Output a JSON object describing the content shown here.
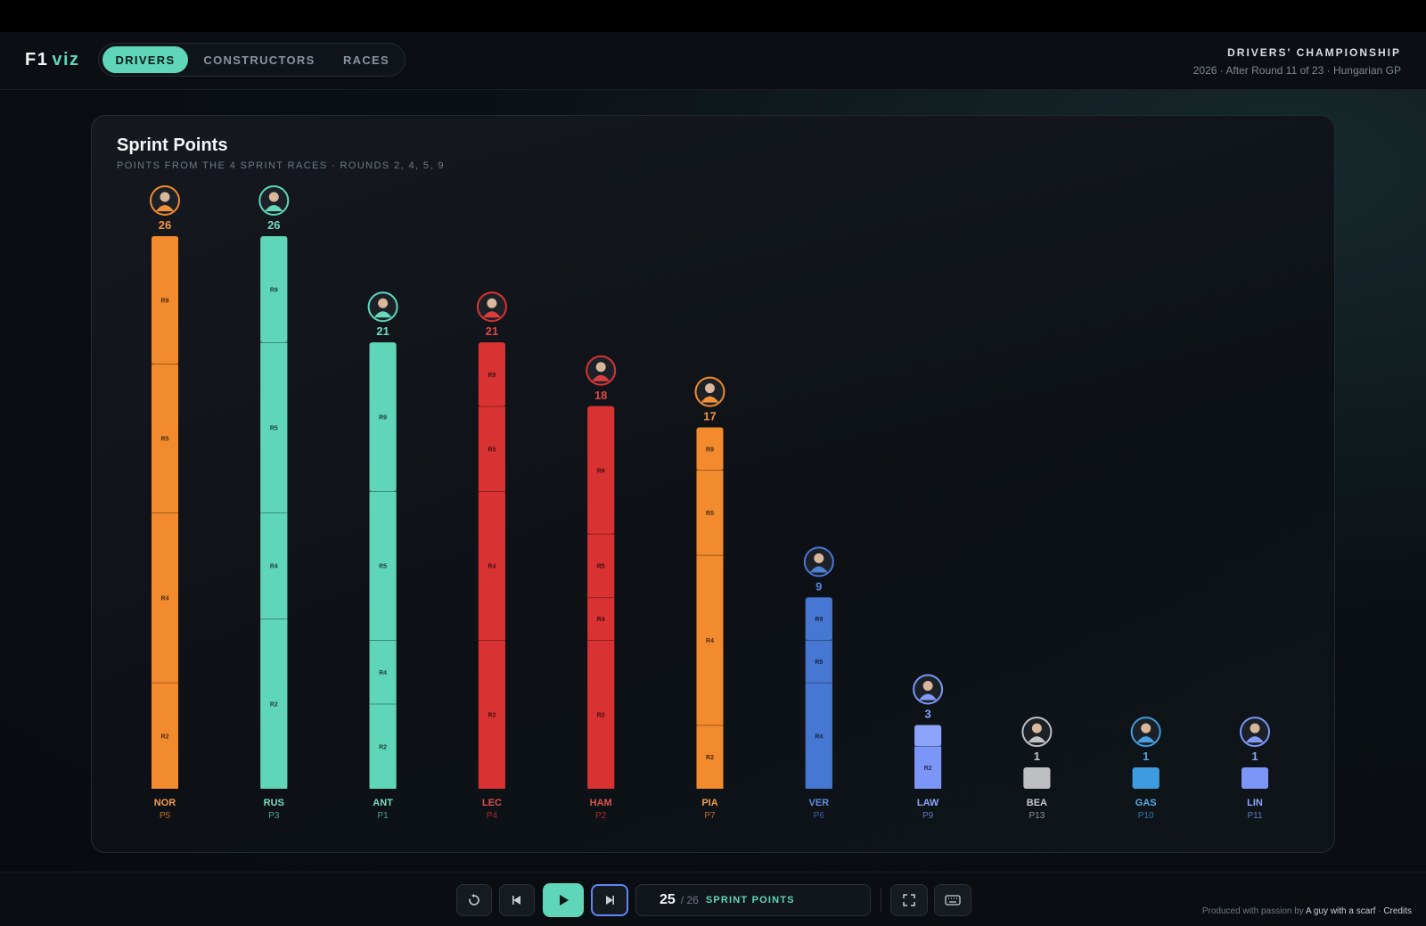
{
  "app": {
    "logo_main": "F1",
    "logo_accent": "viz"
  },
  "nav": {
    "tabs": [
      {
        "label": "DRIVERS",
        "active": true
      },
      {
        "label": "CONSTRUCTORS",
        "active": false
      },
      {
        "label": "RACES",
        "active": false
      }
    ]
  },
  "championship": {
    "title": "DRIVERS' CHAMPIONSHIP",
    "subtitle": "2026 · After Round 11 of 23 · Hungarian GP"
  },
  "chart_data": {
    "type": "bar",
    "stacked": true,
    "title": "Sprint Points",
    "subtitle": "POINTS FROM THE 4 SPRINT RACES · ROUNDS 2, 4, 5, 9",
    "ylim": [
      0,
      26
    ],
    "grid": false,
    "drivers": [
      {
        "code": "NOR",
        "pos": "P5",
        "total": 26,
        "color": "#f28a2e",
        "segments": [
          {
            "round": "R2",
            "points": 5
          },
          {
            "round": "R4",
            "points": 8
          },
          {
            "round": "R5",
            "points": 7
          },
          {
            "round": "R9",
            "points": 6
          }
        ]
      },
      {
        "code": "RUS",
        "pos": "P3",
        "total": 26,
        "color": "#5fd6b8",
        "segments": [
          {
            "round": "R2",
            "points": 8
          },
          {
            "round": "R4",
            "points": 5
          },
          {
            "round": "R5",
            "points": 8
          },
          {
            "round": "R9",
            "points": 5
          }
        ]
      },
      {
        "code": "ANT",
        "pos": "P1",
        "total": 21,
        "color": "#5fd6b8",
        "segments": [
          {
            "round": "R2",
            "points": 4
          },
          {
            "round": "R4",
            "points": 3
          },
          {
            "round": "R5",
            "points": 7
          },
          {
            "round": "R9",
            "points": 7
          }
        ]
      },
      {
        "code": "LEC",
        "pos": "P4",
        "total": 21,
        "color": "#d93232",
        "segments": [
          {
            "round": "R2",
            "points": 7
          },
          {
            "round": "R4",
            "points": 7
          },
          {
            "round": "R5",
            "points": 4
          },
          {
            "round": "R9",
            "points": 3
          }
        ]
      },
      {
        "code": "HAM",
        "pos": "P2",
        "total": 18,
        "color": "#d93232",
        "segments": [
          {
            "round": "R2",
            "points": 7
          },
          {
            "round": "R4",
            "points": 2
          },
          {
            "round": "R5",
            "points": 3
          },
          {
            "round": "R9",
            "points": 6
          }
        ]
      },
      {
        "code": "PIA",
        "pos": "P7",
        "total": 17,
        "color": "#f28a2e",
        "segments": [
          {
            "round": "R2",
            "points": 3
          },
          {
            "round": "R4",
            "points": 8
          },
          {
            "round": "R5",
            "points": 4
          },
          {
            "round": "R9",
            "points": 2
          }
        ]
      },
      {
        "code": "VER",
        "pos": "P6",
        "total": 9,
        "color": "#4677d2",
        "segments": [
          {
            "round": "R4",
            "points": 5
          },
          {
            "round": "R5",
            "points": 2
          },
          {
            "round": "R9",
            "points": 2
          }
        ]
      },
      {
        "code": "LAW",
        "pos": "P9",
        "total": 3,
        "color": "#7b96f7",
        "segments": [
          {
            "round": "R2",
            "points": 2
          },
          {
            "round": "",
            "points": 1
          }
        ]
      },
      {
        "code": "BEA",
        "pos": "P13",
        "total": 1,
        "color": "#bdbfc3",
        "segments": [
          {
            "round": "",
            "points": 1
          }
        ]
      },
      {
        "code": "GAS",
        "pos": "P10",
        "total": 1,
        "color": "#3e9bdf",
        "segments": [
          {
            "round": "",
            "points": 1
          }
        ]
      },
      {
        "code": "LIN",
        "pos": "P11",
        "total": 1,
        "color": "#7b96f7",
        "segments": [
          {
            "round": "",
            "points": 1
          }
        ]
      }
    ]
  },
  "playback": {
    "current": "25",
    "total": "/ 26",
    "label": "SPRINT POINTS"
  },
  "credit": {
    "prefix": "Produced with passion by",
    "author": "A guy with a scarf",
    "sep": "·",
    "link": "Credits"
  }
}
